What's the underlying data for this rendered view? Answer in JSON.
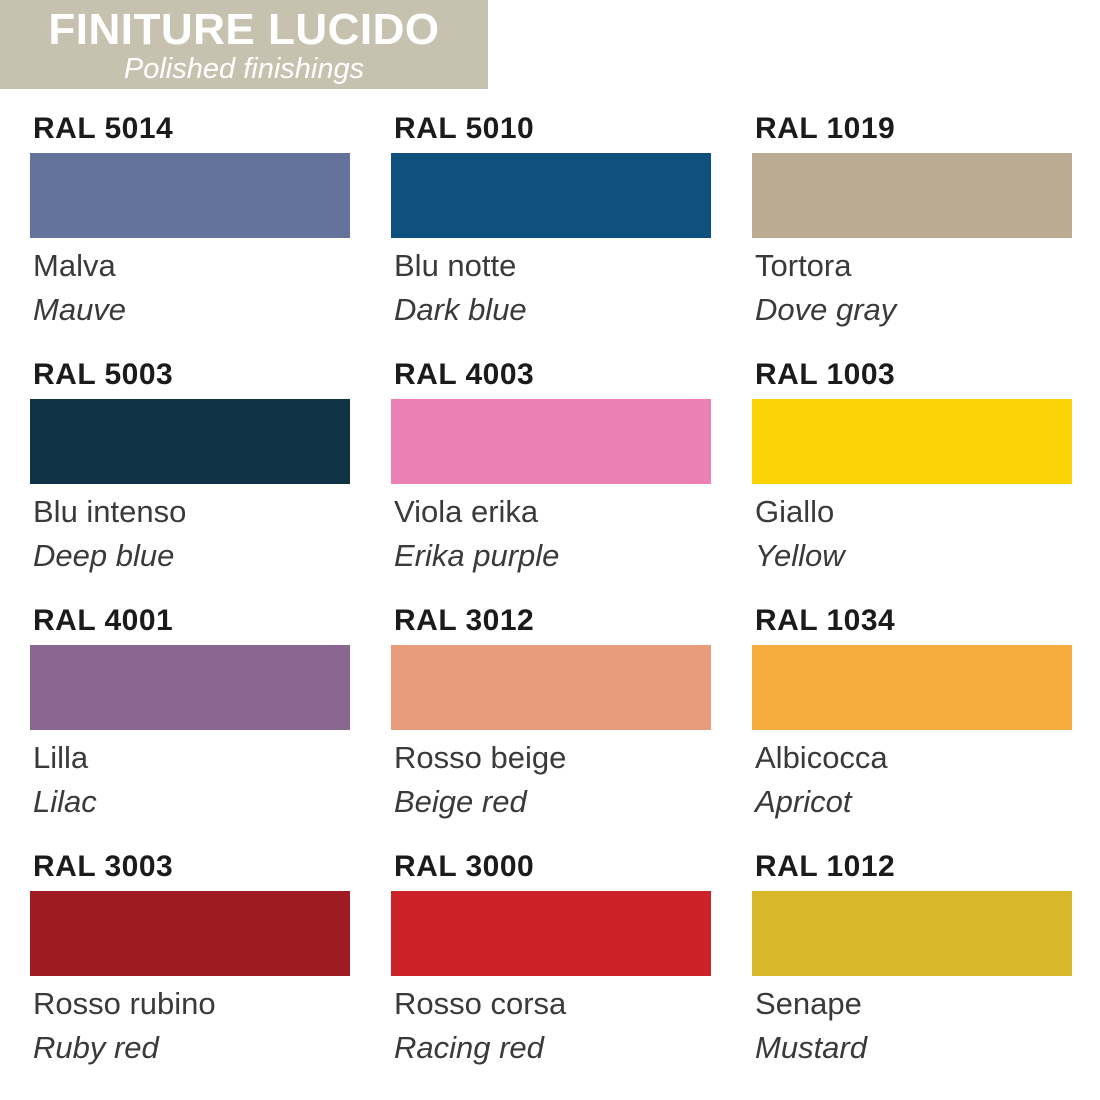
{
  "header": {
    "title": "FINITURE LUCIDO",
    "subtitle": "Polished finishings",
    "banner_color": "#C7C2AF",
    "text_color": "#FFFFFF"
  },
  "swatches": [
    {
      "ral": "RAL 5014",
      "name_it": "Malva",
      "name_en": "Mauve",
      "hex": "#63739C"
    },
    {
      "ral": "RAL 5010",
      "name_it": "Blu notte",
      "name_en": "Dark blue",
      "hex": "#10507F"
    },
    {
      "ral": "RAL 1019",
      "name_it": "Tortora",
      "name_en": "Dove gray",
      "hex": "#BBAB93"
    },
    {
      "ral": "RAL 5003",
      "name_it": "Blu intenso",
      "name_en": "Deep blue",
      "hex": "#0F3345"
    },
    {
      "ral": "RAL 4003",
      "name_it": "Viola erika",
      "name_en": "Erika purple",
      "hex": "#EB80B5"
    },
    {
      "ral": "RAL 1003",
      "name_it": "Giallo",
      "name_en": "Yellow",
      "hex": "#FBD306"
    },
    {
      "ral": "RAL 4001",
      "name_it": "Lilla",
      "name_en": "Lilac",
      "hex": "#8A6791"
    },
    {
      "ral": "RAL 3012",
      "name_it": "Rosso beige",
      "name_en": "Beige red",
      "hex": "#E79C7A"
    },
    {
      "ral": "RAL 1034",
      "name_it": "Albicocca",
      "name_en": "Apricot",
      "hex": "#F7AD3E"
    },
    {
      "ral": "RAL 3003",
      "name_it": "Rosso rubino",
      "name_en": "Ruby red",
      "hex": "#9D1B21"
    },
    {
      "ral": "RAL 3000",
      "name_it": "Rosso corsa",
      "name_en": "Racing red",
      "hex": "#CD2128"
    },
    {
      "ral": "RAL 1012",
      "name_it": "Senape",
      "name_en": "Mustard",
      "hex": "#D8B729"
    }
  ]
}
